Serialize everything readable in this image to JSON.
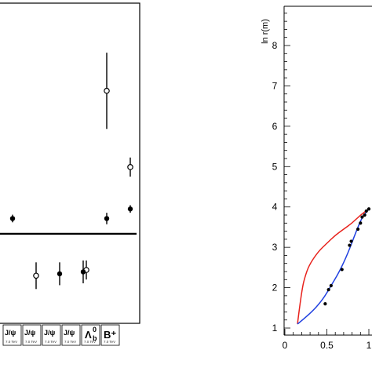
{
  "chart_data": [
    {
      "type": "scatter",
      "description_free": true,
      "series": [
        {
          "marker": "open-circle",
          "points": [
            {
              "x": 1,
              "y": 0.78,
              "err": 0.07
            },
            {
              "x": 3,
              "y": 0.81,
              "err": 0.05
            },
            {
              "x": 4,
              "y": 1.75,
              "err": 0.2
            },
            {
              "x": 5,
              "y": 1.35,
              "err": 0.05
            }
          ]
        },
        {
          "marker": "filled-circle",
          "points": [
            {
              "x": 0,
              "y": 1.08,
              "err": 0.02
            },
            {
              "x": 2,
              "y": 0.79,
              "err": 0.06
            },
            {
              "x": 3,
              "y": 0.8,
              "err": 0.06
            },
            {
              "x": 4,
              "y": 1.08,
              "err": 0.03
            },
            {
              "x": 5,
              "y": 1.13,
              "err": 0.02
            }
          ]
        }
      ],
      "reference_line": 1.0,
      "ylim": [
        0.6,
        2.0
      ],
      "category_badges": [
        {
          "main": "J/ψ",
          "sub": "7.0 TeV"
        },
        {
          "main": "J/ψ",
          "sub": "7.0 TeV"
        },
        {
          "main": "J/ψ",
          "sub": "7.0 TeV"
        },
        {
          "main": "J/ψ",
          "sub": "7.0 TeV"
        },
        {
          "main": "Λ",
          "sup": "0",
          "subscript": "b",
          "sub": "7.0 TeV"
        },
        {
          "main": "B⁺",
          "sub": "7.0 TeV"
        }
      ]
    },
    {
      "type": "line",
      "ylabel": "ln r(m)",
      "xlim": [
        0,
        1.0
      ],
      "ylim": [
        0.6,
        9.0
      ],
      "xticks": [
        0,
        0.5,
        1
      ],
      "xtick_labels": [
        "0",
        "0.5",
        "1"
      ],
      "yticks": [
        1,
        2,
        3,
        4,
        5,
        6,
        7,
        8
      ],
      "series": [
        {
          "name": "",
          "color": "#e8221c",
          "x": [
            0.15,
            0.2,
            0.25,
            0.3,
            0.4,
            0.5,
            0.6,
            0.7,
            0.8,
            0.9,
            1.0
          ],
          "y": [
            1.1,
            1.95,
            2.35,
            2.6,
            2.9,
            3.1,
            3.3,
            3.45,
            3.6,
            3.8,
            3.95
          ]
        },
        {
          "name": "",
          "color": "#1f3fe0",
          "x": [
            0.15,
            0.3,
            0.45,
            0.55,
            0.65,
            0.75,
            0.85,
            0.92,
            1.0
          ],
          "y": [
            1.1,
            1.35,
            1.7,
            2.05,
            2.4,
            2.85,
            3.4,
            3.75,
            3.95
          ]
        },
        {
          "name": "",
          "marker": "dot",
          "color": "#000000",
          "x": [
            0.48,
            0.52,
            0.55,
            0.68,
            0.77,
            0.79,
            0.87,
            0.9,
            0.92,
            0.95,
            0.97,
            1.0
          ],
          "y": [
            1.6,
            1.95,
            2.05,
            2.45,
            3.05,
            3.15,
            3.45,
            3.6,
            3.75,
            3.8,
            3.9,
            3.95
          ]
        }
      ]
    }
  ]
}
